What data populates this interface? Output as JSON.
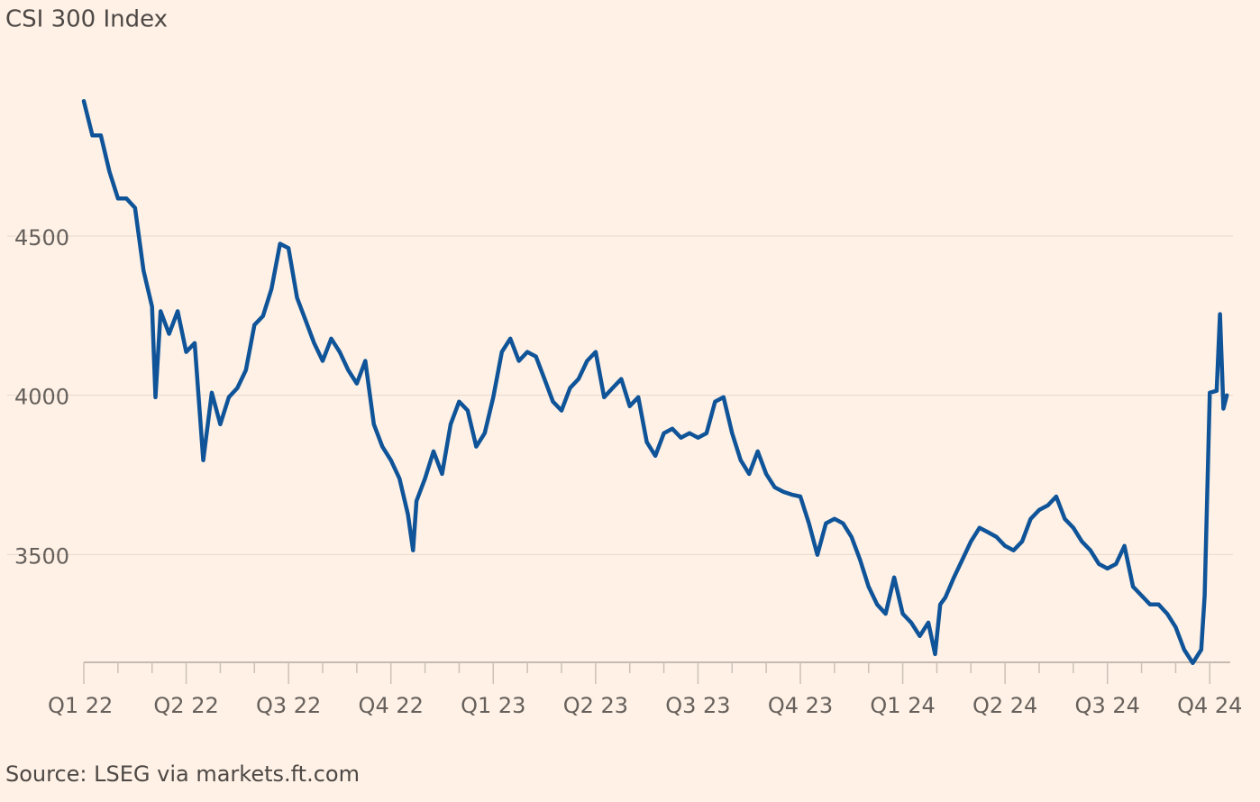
{
  "chart_data": {
    "type": "line",
    "title": "CSI 300 Index",
    "source": "Source: LSEG via markets.ft.com",
    "x": [
      0,
      0.25,
      0.5,
      0.75,
      1,
      1.25,
      1.5,
      1.75,
      2,
      2.1,
      2.25,
      2.5,
      2.75,
      3,
      3.25,
      3.5,
      3.75,
      4,
      4.25,
      4.5,
      4.75,
      5,
      5.25,
      5.5,
      5.75,
      6,
      6.25,
      6.5,
      6.75,
      7,
      7.25,
      7.5,
      7.75,
      8,
      8.25,
      8.5,
      8.75,
      9,
      9.25,
      9.5,
      9.65,
      9.75,
      10,
      10.25,
      10.5,
      10.75,
      11,
      11.25,
      11.5,
      11.75,
      12,
      12.25,
      12.5,
      12.75,
      13,
      13.25,
      13.5,
      13.75,
      14,
      14.25,
      14.5,
      14.75,
      15,
      15.25,
      15.5,
      15.75,
      16,
      16.25,
      16.5,
      16.75,
      17,
      17.25,
      17.5,
      17.75,
      18,
      18.25,
      18.5,
      18.75,
      19,
      19.25,
      19.5,
      19.75,
      20,
      20.25,
      20.5,
      20.75,
      21,
      21.25,
      21.5,
      21.75,
      22,
      22.25,
      22.5,
      22.75,
      23,
      23.25,
      23.5,
      23.75,
      24,
      24.25,
      24.5,
      24.75,
      24.95,
      25.1,
      25.25,
      25.5,
      25.75,
      26,
      26.25,
      26.5,
      26.75,
      27,
      27.25,
      27.5,
      27.75,
      28,
      28.25,
      28.5,
      28.75,
      29,
      29.25,
      29.5,
      29.75,
      30,
      30.25,
      30.5,
      30.75,
      31,
      31.25,
      31.5,
      31.75,
      32,
      32.25,
      32.5,
      32.75,
      32.85,
      33,
      33.2,
      33.3,
      33.4,
      33.5
    ],
    "series": [
      {
        "name": "CSI 300",
        "color": "#0f5499",
        "values": [
          4924,
          4816,
          4816,
          4703,
          4618,
          4618,
          4589,
          4391,
          4278,
          3994,
          4264,
          4193,
          4264,
          4136,
          4164,
          3796,
          4008,
          3909,
          3994,
          4023,
          4079,
          4221,
          4249,
          4334,
          4476,
          4462,
          4306,
          4235,
          4164,
          4108,
          4178,
          4136,
          4079,
          4037,
          4108,
          3909,
          3839,
          3796,
          3739,
          3626,
          3513,
          3668,
          3739,
          3824,
          3753,
          3909,
          3980,
          3952,
          3839,
          3881,
          3994,
          4136,
          4178,
          4108,
          4136,
          4122,
          4051,
          3980,
          3952,
          4023,
          4051,
          4108,
          4136,
          3994,
          4023,
          4051,
          3966,
          3994,
          3853,
          3810,
          3881,
          3895,
          3867,
          3881,
          3867,
          3881,
          3980,
          3994,
          3881,
          3796,
          3753,
          3824,
          3753,
          3711,
          3697,
          3688,
          3682,
          3598,
          3499,
          3598,
          3612,
          3598,
          3555,
          3484,
          3399,
          3343,
          3314,
          3428,
          3314,
          3286,
          3244,
          3286,
          3187,
          3343,
          3365,
          3428,
          3484,
          3541,
          3584,
          3570,
          3555,
          3527,
          3513,
          3541,
          3612,
          3640,
          3654,
          3682,
          3612,
          3584,
          3541,
          3513,
          3470,
          3456,
          3470,
          3527,
          3399,
          3371,
          3343,
          3343,
          3314,
          3272,
          3201,
          3159,
          3201,
          3371,
          4008,
          4014,
          4255,
          3958,
          4000
        ]
      }
    ],
    "xlim": [
      0,
      33.6
    ],
    "xticks": [
      {
        "value": 0,
        "label": "Q1 22"
      },
      {
        "value": 3,
        "label": "Q2 22"
      },
      {
        "value": 6,
        "label": "Q3 22"
      },
      {
        "value": 9,
        "label": "Q4 22"
      },
      {
        "value": 12,
        "label": "Q1 23"
      },
      {
        "value": 15,
        "label": "Q2 23"
      },
      {
        "value": 18,
        "label": "Q3 23"
      },
      {
        "value": 21,
        "label": "Q4 23"
      },
      {
        "value": 24,
        "label": "Q1 24"
      },
      {
        "value": 27,
        "label": "Q2 24"
      },
      {
        "value": 30,
        "label": "Q3 24"
      },
      {
        "value": 33,
        "label": "Q4 24"
      }
    ],
    "xminor_ticks": [
      1,
      2,
      4,
      5,
      7,
      8,
      10,
      11,
      13,
      14,
      16,
      17,
      19,
      20,
      22,
      23,
      25,
      26,
      28,
      29,
      31,
      32
    ],
    "ylim": [
      3150,
      4950
    ],
    "yticks": [
      3500,
      4000,
      4500
    ],
    "grid": true
  }
}
